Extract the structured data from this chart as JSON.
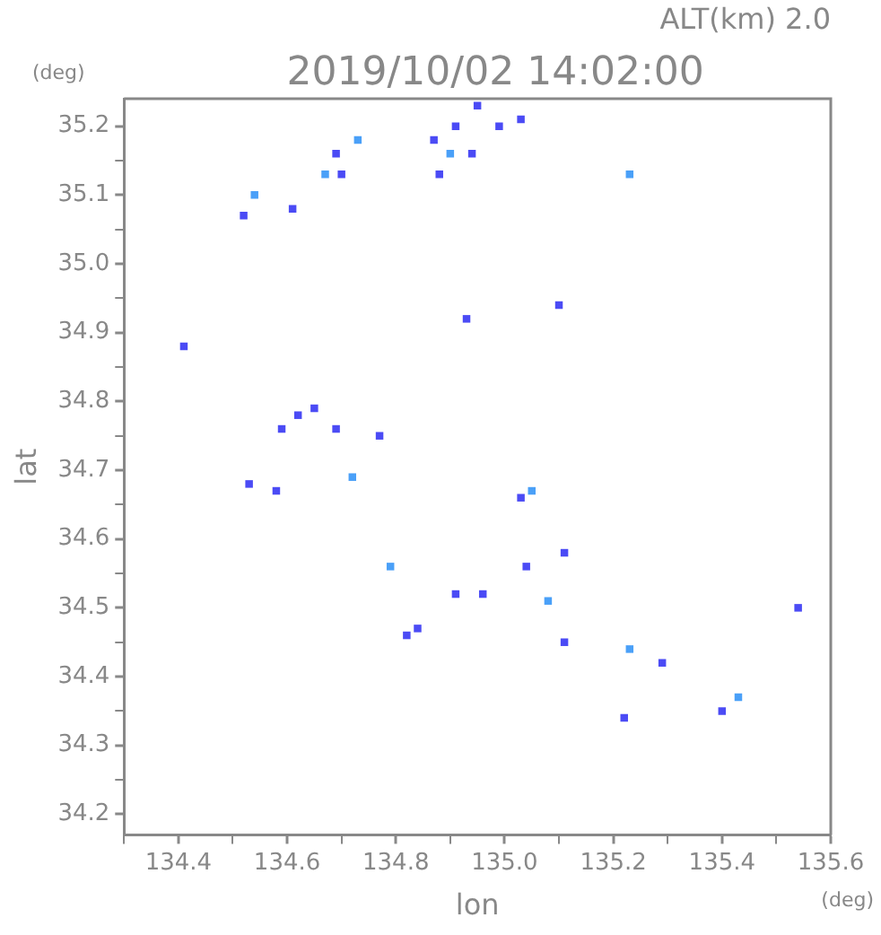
{
  "chart_data": {
    "type": "scatter",
    "title": "2019/10/02 14:02:00",
    "subtitle": "ALT(km) 2.0",
    "xlabel": "lon",
    "ylabel": "lat",
    "annotations": [
      "(deg)",
      "(deg)"
    ],
    "x": [
      135.54,
      135.43,
      135.4,
      135.22,
      135.23,
      135.29,
      134.82,
      134.84,
      134.79,
      135.08,
      135.04,
      135.03,
      135.05,
      135.11,
      135.11,
      134.91,
      134.96,
      134.59,
      134.62,
      134.69,
      134.65,
      134.77,
      134.72,
      134.53,
      134.58,
      134.41,
      134.93,
      135.1,
      134.54,
      134.52,
      134.61,
      134.69,
      134.73,
      134.67,
      134.7,
      134.91,
      134.95,
      134.99,
      135.03,
      134.87,
      134.9,
      134.94,
      134.88,
      135.23
    ],
    "series": [
      {
        "values": [
          34.5,
          34.37,
          34.35,
          34.34,
          34.44,
          34.42,
          34.46,
          34.47,
          34.56,
          34.51,
          34.56,
          34.66,
          34.67,
          34.58,
          34.45,
          34.52,
          34.52,
          34.76,
          34.78,
          34.76,
          34.79,
          34.75,
          34.69,
          34.68,
          34.67,
          34.88,
          34.92,
          34.94,
          35.1,
          35.07,
          35.08,
          35.16,
          35.18,
          35.13,
          35.13,
          35.2,
          35.23,
          35.2,
          35.21,
          35.18,
          35.16,
          35.16,
          35.13,
          35.13
        ],
        "colors": [
          "#4b4bf5",
          "#4aa0f8",
          "#4b4bf5",
          "#4b4bf5",
          "#4aa0f8",
          "#4b4bf5",
          "#4b4bf5",
          "#4b4bf5",
          "#4aa0f8",
          "#4aa0f8",
          "#4b4bf5",
          "#4b4bf5",
          "#4aa0f8",
          "#4b4bf5",
          "#4b4bf5",
          "#4b4bf5",
          "#4b4bf5",
          "#4b4bf5",
          "#4b4bf5",
          "#4b4bf5",
          "#4b4bf5",
          "#4b4bf5",
          "#4aa0f8",
          "#4b4bf5",
          "#4b4bf5",
          "#4b4bf5",
          "#4b4bf5",
          "#4b4bf5",
          "#4aa0f8",
          "#4b4bf5",
          "#4b4bf5",
          "#4b4bf5",
          "#4aa0f8",
          "#4aa0f8",
          "#4b4bf5",
          "#4b4bf5",
          "#4b4bf5",
          "#4b4bf5",
          "#4b4bf5",
          "#4b4bf5",
          "#4aa0f8",
          "#4b4bf5",
          "#4b4bf5",
          "#4aa0f8"
        ]
      }
    ],
    "marker": "square",
    "xlim": [
      134.3,
      135.6
    ],
    "xticks": [
      {
        "value": 134.3,
        "label": null
      },
      134.4,
      {
        "value": 134.5,
        "label": null
      },
      134.6,
      {
        "value": 134.7,
        "label": null
      },
      134.8,
      {
        "value": 134.9,
        "label": null
      },
      {
        "value": 135.0,
        "label": "135.0"
      },
      {
        "value": 135.1,
        "label": null
      },
      135.2,
      {
        "value": 135.3,
        "label": null
      },
      135.4,
      {
        "value": 135.5,
        "label": null
      },
      135.6
    ],
    "ylim": [
      34.17,
      35.24
    ],
    "yticks": [
      34.2,
      {
        "value": 34.25,
        "label": null
      },
      34.3,
      {
        "value": 34.35,
        "label": null
      },
      34.4,
      {
        "value": 34.45,
        "label": null
      },
      34.5,
      {
        "value": 34.55,
        "label": null
      },
      34.6,
      {
        "value": 34.65,
        "label": null
      },
      34.7,
      {
        "value": 34.75,
        "label": null
      },
      34.8,
      {
        "value": 34.85,
        "label": null
      },
      34.9,
      {
        "value": 34.95,
        "label": null
      },
      {
        "value": 35.0,
        "label": "35.0"
      },
      {
        "value": 35.05,
        "label": null
      },
      35.1,
      {
        "value": 35.15,
        "label": null
      },
      35.2
    ],
    "grid": false,
    "legend": false
  }
}
